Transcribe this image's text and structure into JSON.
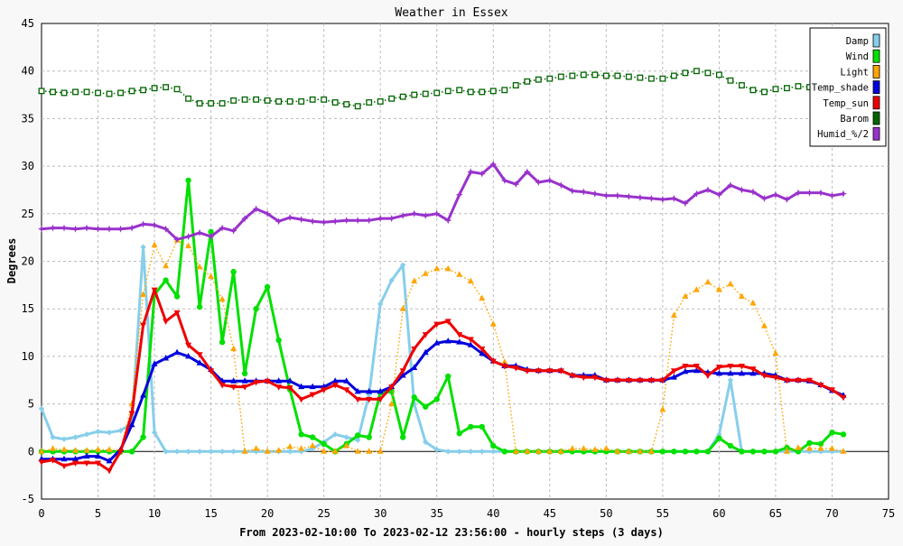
{
  "chart_data": {
    "type": "line",
    "title": "Weather in Essex",
    "xlabel": "From 2023-02-10:00 To 2023-02-12 23:56:00 - hourly steps (3 days)",
    "ylabel": "Degrees",
    "xlim": [
      0,
      75
    ],
    "ylim": [
      -5,
      45
    ],
    "xticks": [
      0,
      5,
      10,
      15,
      20,
      25,
      30,
      35,
      40,
      45,
      50,
      55,
      60,
      65,
      70,
      75
    ],
    "yticks": [
      -5,
      0,
      5,
      10,
      15,
      20,
      25,
      30,
      35,
      40,
      45
    ],
    "grid": true,
    "legend_position": "top-right",
    "series": [
      {
        "name": "Damp",
        "color": "#87ceeb",
        "style": "solid",
        "marker": "diamond",
        "values": [
          4.5,
          1.5,
          1.3,
          1.5,
          1.8,
          2.1,
          2,
          2.2,
          3,
          21.5,
          2,
          0,
          0,
          0,
          0,
          0,
          0,
          0,
          0,
          0,
          0,
          0,
          0,
          0,
          0.3,
          1,
          1.8,
          1.5,
          1.2,
          6,
          15.5,
          18,
          19.6,
          5,
          1,
          0.2,
          0,
          0,
          0,
          0,
          0,
          0,
          0,
          0,
          0,
          0,
          0,
          0,
          0,
          0,
          0,
          0,
          0,
          0,
          0,
          0,
          0,
          0,
          0,
          0,
          1.8,
          7.5,
          0,
          0,
          0,
          0,
          0,
          0,
          0,
          0,
          0,
          0
        ]
      },
      {
        "name": "Wind",
        "color": "#00e000",
        "style": "solid",
        "marker": "circle",
        "values": [
          0,
          0,
          0,
          0,
          0,
          0,
          0,
          0,
          0,
          1.5,
          16.5,
          18,
          16.3,
          28.5,
          15.2,
          23.1,
          11.5,
          18.9,
          8.2,
          15,
          17.3,
          11.7,
          6.5,
          1.8,
          1.5,
          0.8,
          0,
          0.8,
          1.7,
          1.5,
          6.2,
          6.3,
          1.5,
          5.7,
          4.7,
          5.5,
          7.9,
          1.9,
          2.6,
          2.6,
          0.6,
          0,
          0,
          0,
          0,
          0,
          0,
          0,
          0,
          0,
          0,
          0,
          0,
          0,
          0,
          0,
          0,
          0,
          0,
          0,
          1.4,
          0.6,
          0,
          0,
          0,
          0,
          0.4,
          0,
          0.9,
          0.8,
          2,
          1.8
        ]
      },
      {
        "name": "Light",
        "color": "#ffa500",
        "style": "dotted",
        "marker": "triangle",
        "values": [
          0,
          0.3,
          0.2,
          0.1,
          0.1,
          0.2,
          0.2,
          0.1,
          5,
          16.5,
          21.7,
          19.5,
          22.2,
          21.6,
          19.4,
          18.4,
          16,
          10.8,
          0,
          0.3,
          0,
          0.1,
          0.5,
          0.3,
          0.6,
          0,
          0,
          0.6,
          0,
          0,
          0,
          5,
          15,
          17.9,
          18.7,
          19.2,
          19.2,
          18.6,
          17.9,
          16.1,
          13.4,
          9.4,
          0,
          0,
          0,
          0,
          0,
          0.3,
          0.3,
          0.2,
          0.3,
          0,
          0,
          0,
          0,
          4.4,
          14.3,
          16.3,
          17,
          17.8,
          17,
          17.6,
          16.3,
          15.6,
          13.2,
          10.3,
          0,
          0.4,
          0.3,
          0.3,
          0.3,
          0
        ]
      },
      {
        "name": "Temp_shade",
        "color": "#0000dd",
        "style": "solid",
        "marker": "triangle",
        "values": [
          -0.8,
          -0.8,
          -0.8,
          -0.8,
          -0.5,
          -0.5,
          -1,
          0.2,
          2.8,
          5.9,
          9.2,
          9.8,
          10.4,
          10,
          9.3,
          8.6,
          7.4,
          7.4,
          7.4,
          7.4,
          7.4,
          7.4,
          7.4,
          6.8,
          6.8,
          6.8,
          7.4,
          7.4,
          6.3,
          6.3,
          6.3,
          6.8,
          8,
          8.8,
          10.4,
          11.4,
          11.6,
          11.5,
          11.2,
          10.3,
          9.5,
          9,
          9,
          8.6,
          8.5,
          8.5,
          8.5,
          8,
          8,
          8,
          7.5,
          7.5,
          7.5,
          7.5,
          7.5,
          7.5,
          7.8,
          8.4,
          8.5,
          8.3,
          8.2,
          8.2,
          8.2,
          8.2,
          8.2,
          8,
          7.5,
          7.5,
          7.4,
          7,
          6.4,
          5.9
        ]
      },
      {
        "name": "Temp_sun",
        "color": "#ee0000",
        "style": "solid",
        "marker": "triangle-down",
        "values": [
          -1.1,
          -0.9,
          -1.5,
          -1.2,
          -1.2,
          -1.2,
          -2,
          0,
          4,
          13.3,
          17,
          13.7,
          14.6,
          11.2,
          10.2,
          8.5,
          7,
          6.8,
          6.8,
          7.3,
          7.4,
          6.8,
          6.7,
          5.5,
          6,
          6.5,
          7,
          6.5,
          5.5,
          5.5,
          5.5,
          6.8,
          8.5,
          10.8,
          12.3,
          13.4,
          13.7,
          12.3,
          11.8,
          10.8,
          9.5,
          9,
          8.8,
          8.5,
          8.5,
          8.5,
          8.5,
          8,
          7.8,
          7.8,
          7.5,
          7.5,
          7.5,
          7.5,
          7.5,
          7.5,
          8.5,
          9,
          9,
          8,
          8.9,
          9,
          9,
          8.7,
          8,
          7.8,
          7.5,
          7.5,
          7.5,
          7,
          6.5,
          5.7
        ]
      },
      {
        "name": "Barom",
        "color": "#006400",
        "style": "dotted",
        "marker": "square",
        "values": [
          37.9,
          37.8,
          37.7,
          37.8,
          37.8,
          37.7,
          37.6,
          37.7,
          37.9,
          38,
          38.2,
          38.3,
          38.1,
          37.1,
          36.6,
          36.6,
          36.6,
          36.9,
          37,
          37,
          36.9,
          36.8,
          36.8,
          36.8,
          37,
          37,
          36.7,
          36.5,
          36.3,
          36.7,
          36.8,
          37.1,
          37.3,
          37.5,
          37.6,
          37.7,
          37.9,
          38,
          37.8,
          37.8,
          37.9,
          38,
          38.5,
          38.9,
          39.1,
          39.2,
          39.4,
          39.5,
          39.6,
          39.6,
          39.5,
          39.5,
          39.4,
          39.3,
          39.2,
          39.2,
          39.5,
          39.8,
          40,
          39.8,
          39.6,
          39,
          38.5,
          38,
          37.8,
          38.1,
          38.2,
          38.4,
          38.3,
          38.3,
          38.3,
          38.4
        ]
      },
      {
        "name": "Humid_%/2",
        "color": "#9932cc",
        "style": "solid",
        "marker": "star",
        "values": [
          23.4,
          23.5,
          23.5,
          23.4,
          23.5,
          23.4,
          23.4,
          23.4,
          23.5,
          23.9,
          23.8,
          23.4,
          22.3,
          22.6,
          23,
          22.6,
          23.5,
          23.2,
          24.5,
          25.5,
          25,
          24.2,
          24.6,
          24.4,
          24.2,
          24.1,
          24.2,
          24.3,
          24.3,
          24.3,
          24.5,
          24.5,
          24.8,
          25,
          24.8,
          25,
          24.3,
          27,
          29.4,
          29.2,
          30.2,
          28.5,
          28.1,
          29.4,
          28.3,
          28.5,
          28,
          27.4,
          27.3,
          27.1,
          26.9,
          26.9,
          26.8,
          26.7,
          26.6,
          26.5,
          26.6,
          26.1,
          27.1,
          27.5,
          27,
          28,
          27.5,
          27.3,
          26.6,
          27,
          26.5,
          27.2,
          27.2,
          27.2,
          26.9,
          27.1
        ]
      }
    ]
  }
}
